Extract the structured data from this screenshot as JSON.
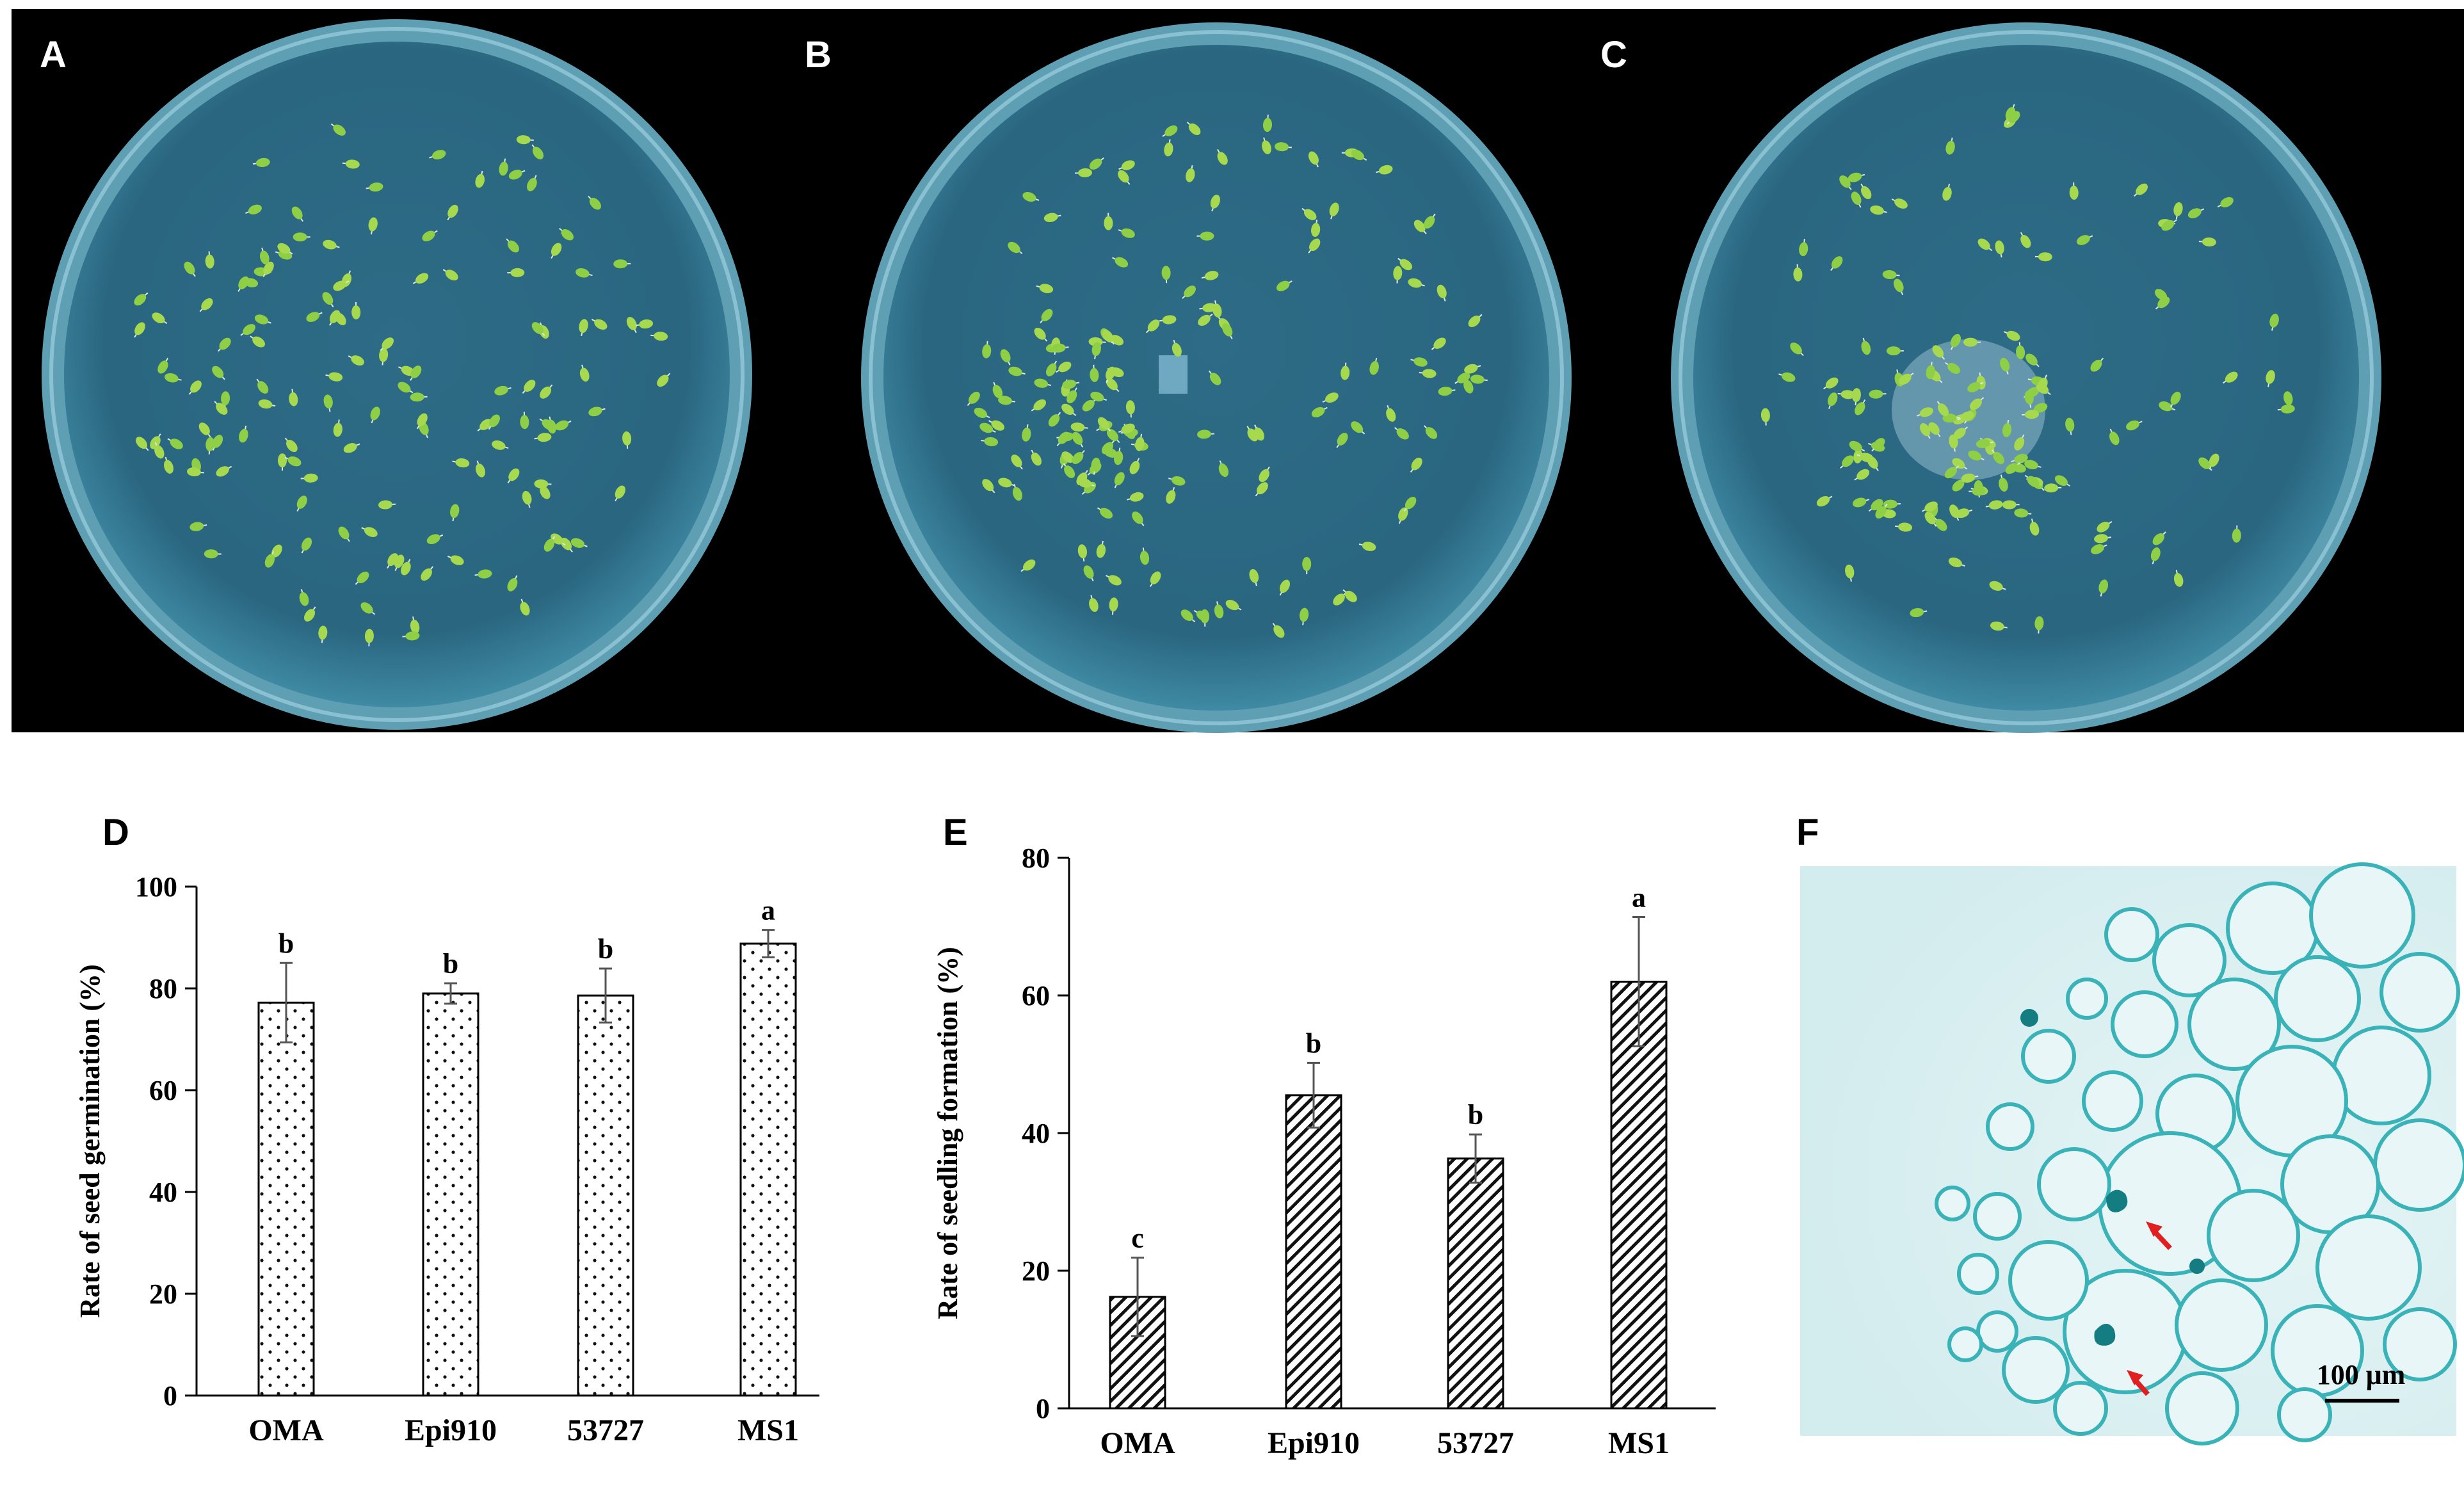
{
  "panel_labels": {
    "a": "A",
    "b": "B",
    "c": "C",
    "d": "D",
    "e": "E",
    "f": "F"
  },
  "micrograph": {
    "scale_bar_label": "100 μm"
  },
  "colors": {
    "photo_background": "#000000",
    "agar": "#2f6d86",
    "seedling": "#9fd64a",
    "micrograph_background": "#d7eef0",
    "cell_wall": "#3ab3b8",
    "arrow": "#e02020"
  },
  "chart_data": [
    {
      "type": "bar",
      "panel": "D",
      "ylabel": "Rate of seed germination (%)",
      "xlabel": "",
      "categories": [
        "OMA",
        "Epi910",
        "53727",
        "MS1"
      ],
      "values": [
        77.2,
        79.0,
        78.6,
        88.8
      ],
      "errors": [
        7.8,
        2.0,
        5.3,
        2.7
      ],
      "significance_letters": [
        "b",
        "b",
        "b",
        "a"
      ],
      "ylim": [
        0,
        100
      ],
      "yticks": [
        0,
        20,
        40,
        60,
        80,
        100
      ],
      "pattern": "dots",
      "grid": false,
      "legend": "none"
    },
    {
      "type": "bar",
      "panel": "E",
      "ylabel": "Rate of seedling formation (%)",
      "xlabel": "",
      "categories": [
        "OMA",
        "Epi910",
        "53727",
        "MS1"
      ],
      "values": [
        16.2,
        45.5,
        36.3,
        62.0
      ],
      "errors": [
        5.7,
        4.7,
        3.5,
        9.4
      ],
      "significance_letters": [
        "c",
        "b",
        "b",
        "a"
      ],
      "ylim": [
        0,
        80
      ],
      "yticks": [
        0,
        20,
        40,
        60,
        80
      ],
      "pattern": "diagonal-hatch",
      "grid": false,
      "legend": "none"
    }
  ]
}
